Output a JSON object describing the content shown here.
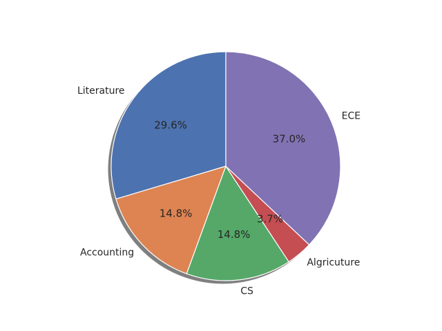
{
  "chart_data": {
    "type": "pie",
    "startangle": 90,
    "direction": "counterclockwise",
    "shadow": true,
    "slices": [
      {
        "label": "Literature",
        "value": 8,
        "percent": "29.6%",
        "color": "#4c72b0"
      },
      {
        "label": "Accounting",
        "value": 4,
        "percent": "14.8%",
        "color": "#dd8452"
      },
      {
        "label": "CS",
        "value": 4,
        "percent": "14.8%",
        "color": "#55a868"
      },
      {
        "label": "Algricuture",
        "value": 1,
        "percent": "3.7%",
        "color": "#c44e52"
      },
      {
        "label": "ECE",
        "value": 10,
        "percent": "37.0%",
        "color": "#8172b3"
      }
    ]
  }
}
